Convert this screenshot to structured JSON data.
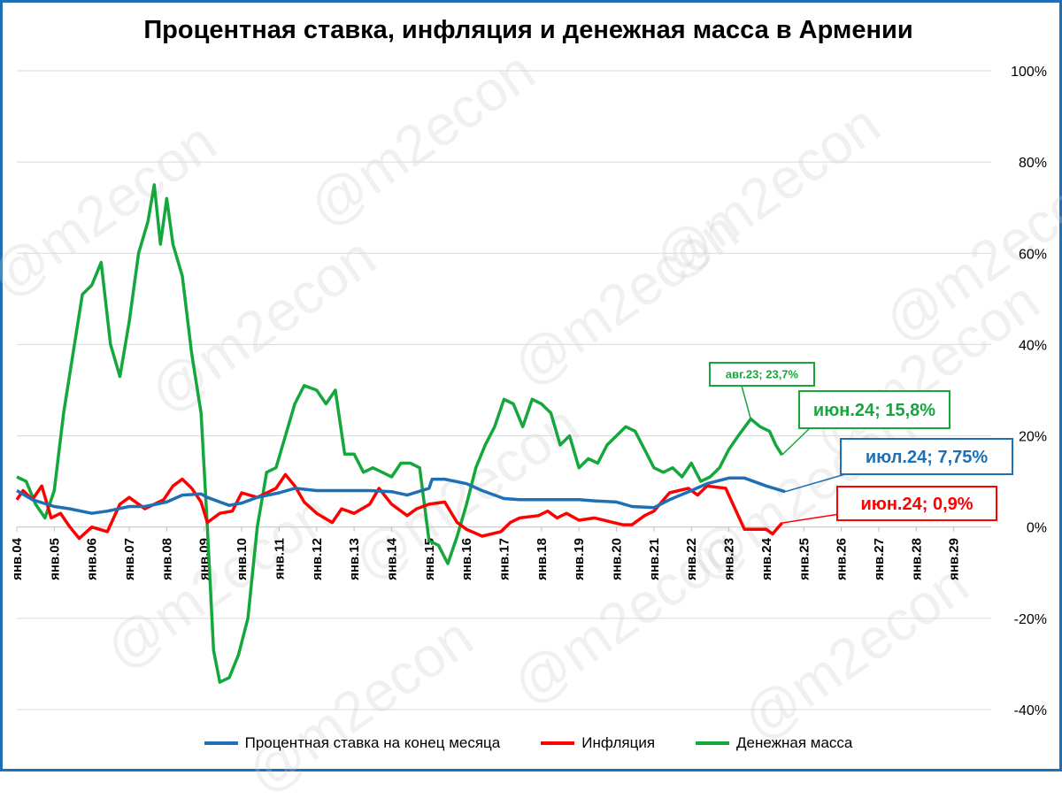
{
  "title": "Процентная ставка, инфляция и денежная масса в Армении",
  "watermark": "@m2econ",
  "colors": {
    "rate": "#1f6fb4",
    "inflation": "#ff0000",
    "money": "#14a83c",
    "frame": "#1f6fb4"
  },
  "legend": {
    "rate": "Процентная ставка на конец месяца",
    "inflation": "Инфляция",
    "money": "Денежная масса"
  },
  "annotations": {
    "money_peak": "авг.23; 23,7%",
    "money_last": "июн.24; 15,8%",
    "rate_last": "июл.24; 7,75%",
    "inflation_last": "июн.24; 0,9%"
  },
  "chart_data": {
    "type": "line",
    "title": "Процентная ставка, инфляция и денежная масса в Армении",
    "x_tick_labels": [
      "янв.04",
      "янв.05",
      "янв.06",
      "янв.07",
      "янв.08",
      "янв.09",
      "янв.10",
      "янв.11",
      "янв.12",
      "янв.13",
      "янв.14",
      "янв.15",
      "янв.16",
      "янв.17",
      "янв.18",
      "янв.19",
      "янв.20",
      "янв.21",
      "янв.22",
      "янв.23",
      "янв.24",
      "янв.25",
      "янв.26",
      "янв.27",
      "янв.28",
      "янв.29"
    ],
    "x_range": [
      "2004-01",
      "2029-12"
    ],
    "y_tick_labels": [
      "100%",
      "80%",
      "60%",
      "40%",
      "20%",
      "0%",
      "-20%",
      "-40%"
    ],
    "ylim": [
      -40,
      100
    ],
    "y_axis_side": "right",
    "grid": "horizontal",
    "legend_position": "bottom",
    "series": [
      {
        "name": "Процентная ставка на конец месяца",
        "points": [
          [
            "2004-01",
            8.0
          ],
          [
            "2004-06",
            6.0
          ],
          [
            "2005-01",
            4.5
          ],
          [
            "2005-06",
            4.0
          ],
          [
            "2006-01",
            3.0
          ],
          [
            "2006-06",
            3.5
          ],
          [
            "2007-01",
            4.5
          ],
          [
            "2007-06",
            4.5
          ],
          [
            "2008-01",
            5.5
          ],
          [
            "2008-06",
            7.0
          ],
          [
            "2008-12",
            7.25
          ],
          [
            "2009-02",
            6.5
          ],
          [
            "2009-06",
            5.5
          ],
          [
            "2009-09",
            4.75
          ],
          [
            "2010-01",
            5.25
          ],
          [
            "2010-06",
            6.5
          ],
          [
            "2011-01",
            7.5
          ],
          [
            "2011-06",
            8.5
          ],
          [
            "2012-01",
            8.0
          ],
          [
            "2012-06",
            8.0
          ],
          [
            "2013-01",
            8.0
          ],
          [
            "2013-06",
            8.0
          ],
          [
            "2014-01",
            7.75
          ],
          [
            "2014-06",
            7.0
          ],
          [
            "2015-01",
            8.5
          ],
          [
            "2015-02",
            10.5
          ],
          [
            "2015-06",
            10.5
          ],
          [
            "2016-01",
            9.5
          ],
          [
            "2016-06",
            8.0
          ],
          [
            "2017-01",
            6.25
          ],
          [
            "2017-06",
            6.0
          ],
          [
            "2018-01",
            6.0
          ],
          [
            "2018-06",
            6.0
          ],
          [
            "2019-01",
            6.0
          ],
          [
            "2019-06",
            5.75
          ],
          [
            "2020-01",
            5.5
          ],
          [
            "2020-06",
            4.5
          ],
          [
            "2021-01",
            4.25
          ],
          [
            "2021-06",
            6.0
          ],
          [
            "2022-01",
            8.0
          ],
          [
            "2022-06",
            9.5
          ],
          [
            "2023-01",
            10.75
          ],
          [
            "2023-06",
            10.75
          ],
          [
            "2024-01",
            9.0
          ],
          [
            "2024-07",
            7.75
          ]
        ]
      },
      {
        "name": "Инфляция",
        "points": [
          [
            "2004-01",
            6.0
          ],
          [
            "2004-03",
            8.0
          ],
          [
            "2004-06",
            6.0
          ],
          [
            "2004-09",
            9.0
          ],
          [
            "2004-12",
            2.0
          ],
          [
            "2005-03",
            3.0
          ],
          [
            "2005-06",
            0.0
          ],
          [
            "2005-09",
            -2.5
          ],
          [
            "2006-01",
            0.0
          ],
          [
            "2006-06",
            -1.0
          ],
          [
            "2006-10",
            5.0
          ],
          [
            "2007-01",
            6.5
          ],
          [
            "2007-06",
            4.0
          ],
          [
            "2007-12",
            6.0
          ],
          [
            "2008-03",
            9.0
          ],
          [
            "2008-06",
            10.5
          ],
          [
            "2008-09",
            8.5
          ],
          [
            "2008-12",
            5.5
          ],
          [
            "2009-02",
            1.0
          ],
          [
            "2009-06",
            3.0
          ],
          [
            "2009-10",
            3.5
          ],
          [
            "2010-01",
            7.5
          ],
          [
            "2010-06",
            6.5
          ],
          [
            "2010-12",
            8.5
          ],
          [
            "2011-03",
            11.5
          ],
          [
            "2011-06",
            9.0
          ],
          [
            "2011-09",
            5.5
          ],
          [
            "2012-01",
            3.0
          ],
          [
            "2012-06",
            1.0
          ],
          [
            "2012-09",
            4.0
          ],
          [
            "2013-01",
            3.0
          ],
          [
            "2013-06",
            5.0
          ],
          [
            "2013-09",
            8.5
          ],
          [
            "2014-01",
            5.0
          ],
          [
            "2014-06",
            2.5
          ],
          [
            "2014-09",
            4.0
          ],
          [
            "2015-01",
            5.0
          ],
          [
            "2015-06",
            5.5
          ],
          [
            "2015-10",
            1.0
          ],
          [
            "2016-01",
            -0.5
          ],
          [
            "2016-06",
            -2.0
          ],
          [
            "2016-12",
            -1.0
          ],
          [
            "2017-03",
            1.0
          ],
          [
            "2017-06",
            2.0
          ],
          [
            "2017-12",
            2.5
          ],
          [
            "2018-03",
            3.5
          ],
          [
            "2018-06",
            2.0
          ],
          [
            "2018-09",
            3.0
          ],
          [
            "2019-01",
            1.5
          ],
          [
            "2019-06",
            2.0
          ],
          [
            "2019-12",
            1.0
          ],
          [
            "2020-03",
            0.5
          ],
          [
            "2020-06",
            0.5
          ],
          [
            "2020-10",
            2.5
          ],
          [
            "2021-01",
            3.5
          ],
          [
            "2021-06",
            7.5
          ],
          [
            "2021-12",
            8.5
          ],
          [
            "2022-03",
            7.0
          ],
          [
            "2022-06",
            9.0
          ],
          [
            "2022-12",
            8.5
          ],
          [
            "2023-03",
            4.0
          ],
          [
            "2023-06",
            -0.5
          ],
          [
            "2023-10",
            -0.5
          ],
          [
            "2024-01",
            -0.5
          ],
          [
            "2024-03",
            -1.5
          ],
          [
            "2024-06",
            0.9
          ]
        ]
      },
      {
        "name": "Денежная масса",
        "points": [
          [
            "2004-01",
            11.0
          ],
          [
            "2004-04",
            10.0
          ],
          [
            "2004-07",
            5.0
          ],
          [
            "2004-10",
            2.0
          ],
          [
            "2005-01",
            8.0
          ],
          [
            "2005-04",
            25.0
          ],
          [
            "2005-07",
            38.0
          ],
          [
            "2005-10",
            51.0
          ],
          [
            "2006-01",
            53.0
          ],
          [
            "2006-04",
            58.0
          ],
          [
            "2006-07",
            40.0
          ],
          [
            "2006-10",
            33.0
          ],
          [
            "2007-01",
            45.0
          ],
          [
            "2007-04",
            60.0
          ],
          [
            "2007-07",
            67.0
          ],
          [
            "2007-09",
            75.0
          ],
          [
            "2007-11",
            62.0
          ],
          [
            "2008-01",
            72.0
          ],
          [
            "2008-03",
            62.0
          ],
          [
            "2008-06",
            55.0
          ],
          [
            "2008-09",
            38.0
          ],
          [
            "2008-12",
            25.0
          ],
          [
            "2009-02",
            0.0
          ],
          [
            "2009-04",
            -27.0
          ],
          [
            "2009-06",
            -34.0
          ],
          [
            "2009-09",
            -33.0
          ],
          [
            "2009-12",
            -28.0
          ],
          [
            "2010-03",
            -20.0
          ],
          [
            "2010-06",
            0.0
          ],
          [
            "2010-09",
            12.0
          ],
          [
            "2010-12",
            13.0
          ],
          [
            "2011-03",
            20.0
          ],
          [
            "2011-06",
            27.0
          ],
          [
            "2011-09",
            31.0
          ],
          [
            "2012-01",
            30.0
          ],
          [
            "2012-04",
            27.0
          ],
          [
            "2012-07",
            30.0
          ],
          [
            "2012-10",
            16.0
          ],
          [
            "2013-01",
            16.0
          ],
          [
            "2013-04",
            12.0
          ],
          [
            "2013-07",
            13.0
          ],
          [
            "2013-10",
            12.0
          ],
          [
            "2014-01",
            11.0
          ],
          [
            "2014-04",
            14.0
          ],
          [
            "2014-07",
            14.0
          ],
          [
            "2014-10",
            13.0
          ],
          [
            "2015-01",
            -3.0
          ],
          [
            "2015-04",
            -4.0
          ],
          [
            "2015-07",
            -8.0
          ],
          [
            "2015-10",
            -2.0
          ],
          [
            "2016-01",
            5.0
          ],
          [
            "2016-04",
            13.0
          ],
          [
            "2016-07",
            18.0
          ],
          [
            "2016-10",
            22.0
          ],
          [
            "2017-01",
            28.0
          ],
          [
            "2017-04",
            27.0
          ],
          [
            "2017-07",
            22.0
          ],
          [
            "2017-10",
            28.0
          ],
          [
            "2018-01",
            27.0
          ],
          [
            "2018-04",
            25.0
          ],
          [
            "2018-07",
            18.0
          ],
          [
            "2018-10",
            20.0
          ],
          [
            "2019-01",
            13.0
          ],
          [
            "2019-04",
            15.0
          ],
          [
            "2019-07",
            14.0
          ],
          [
            "2019-10",
            18.0
          ],
          [
            "2020-01",
            20.0
          ],
          [
            "2020-04",
            22.0
          ],
          [
            "2020-07",
            21.0
          ],
          [
            "2020-10",
            17.0
          ],
          [
            "2021-01",
            13.0
          ],
          [
            "2021-04",
            12.0
          ],
          [
            "2021-07",
            13.0
          ],
          [
            "2021-10",
            11.0
          ],
          [
            "2022-01",
            14.0
          ],
          [
            "2022-04",
            10.0
          ],
          [
            "2022-07",
            11.0
          ],
          [
            "2022-10",
            13.0
          ],
          [
            "2023-01",
            17.0
          ],
          [
            "2023-04",
            20.0
          ],
          [
            "2023-08",
            23.7
          ],
          [
            "2023-11",
            22.0
          ],
          [
            "2024-02",
            21.0
          ],
          [
            "2024-04",
            18.0
          ],
          [
            "2024-06",
            15.8
          ]
        ]
      }
    ]
  }
}
